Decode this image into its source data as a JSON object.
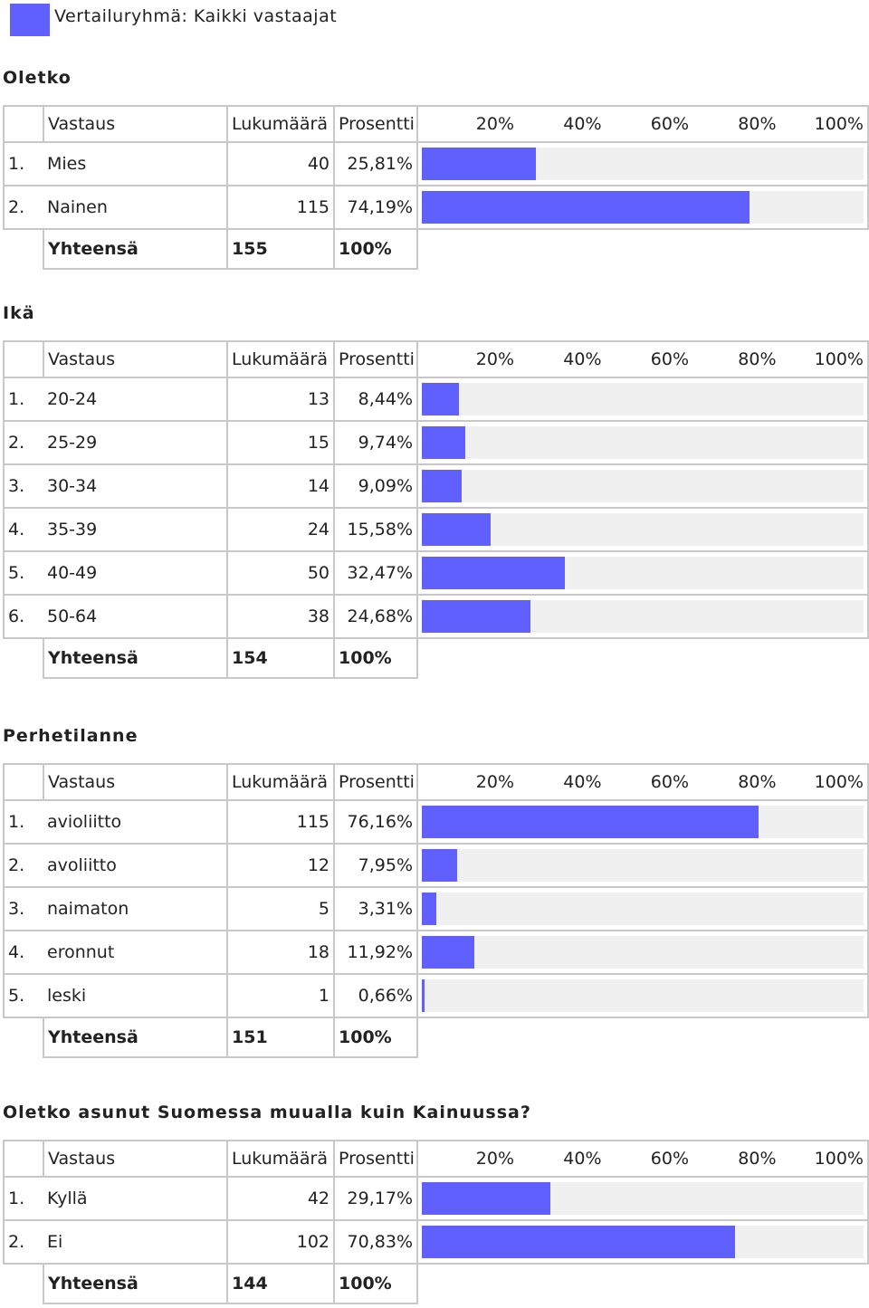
{
  "legend": {
    "label": "Vertailuryhmä: Kaikki vastaajat",
    "color": "#6060ff"
  },
  "header": {
    "vastaus": "Vastaus",
    "lukumaara": "Lukumäärä",
    "prosentti": "Prosentti",
    "scale": [
      "20%",
      "40%",
      "60%",
      "80%",
      "100%"
    ]
  },
  "sections": [
    {
      "title": "Oletko",
      "rows": [
        {
          "index": "1.",
          "answer": "Mies",
          "count": "40",
          "percent": "25,81%",
          "value": 25.81
        },
        {
          "index": "2.",
          "answer": "Nainen",
          "count": "115",
          "percent": "74,19%",
          "value": 74.19
        }
      ],
      "total": {
        "label": "Yhteensä",
        "count": "155",
        "percent": "100%"
      }
    },
    {
      "title": "Ikä",
      "rows": [
        {
          "index": "1.",
          "answer": "20-24",
          "count": "13",
          "percent": "8,44%",
          "value": 8.44
        },
        {
          "index": "2.",
          "answer": "25-29",
          "count": "15",
          "percent": "9,74%",
          "value": 9.74
        },
        {
          "index": "3.",
          "answer": "30-34",
          "count": "14",
          "percent": "9,09%",
          "value": 9.09
        },
        {
          "index": "4.",
          "answer": "35-39",
          "count": "24",
          "percent": "15,58%",
          "value": 15.58
        },
        {
          "index": "5.",
          "answer": "40-49",
          "count": "50",
          "percent": "32,47%",
          "value": 32.47
        },
        {
          "index": "6.",
          "answer": "50-64",
          "count": "38",
          "percent": "24,68%",
          "value": 24.68
        }
      ],
      "total": {
        "label": "Yhteensä",
        "count": "154",
        "percent": "100%"
      }
    },
    {
      "title": "Perhetilanne",
      "rows": [
        {
          "index": "1.",
          "answer": "avioliitto",
          "count": "115",
          "percent": "76,16%",
          "value": 76.16
        },
        {
          "index": "2.",
          "answer": "avoliitto",
          "count": "12",
          "percent": "7,95%",
          "value": 7.95
        },
        {
          "index": "3.",
          "answer": "naimaton",
          "count": "5",
          "percent": "3,31%",
          "value": 3.31
        },
        {
          "index": "4.",
          "answer": "eronnut",
          "count": "18",
          "percent": "11,92%",
          "value": 11.92
        },
        {
          "index": "5.",
          "answer": "leski",
          "count": "1",
          "percent": "0,66%",
          "value": 0.66
        }
      ],
      "total": {
        "label": "Yhteensä",
        "count": "151",
        "percent": "100%"
      }
    },
    {
      "title": "Oletko asunut Suomessa muualla kuin Kainuussa?",
      "rows": [
        {
          "index": "1.",
          "answer": "Kyllä",
          "count": "42",
          "percent": "29,17%",
          "value": 29.17
        },
        {
          "index": "2.",
          "answer": "Ei",
          "count": "102",
          "percent": "70,83%",
          "value": 70.83
        }
      ],
      "total": {
        "label": "Yhteensä",
        "count": "144",
        "percent": "100%"
      }
    }
  ]
}
